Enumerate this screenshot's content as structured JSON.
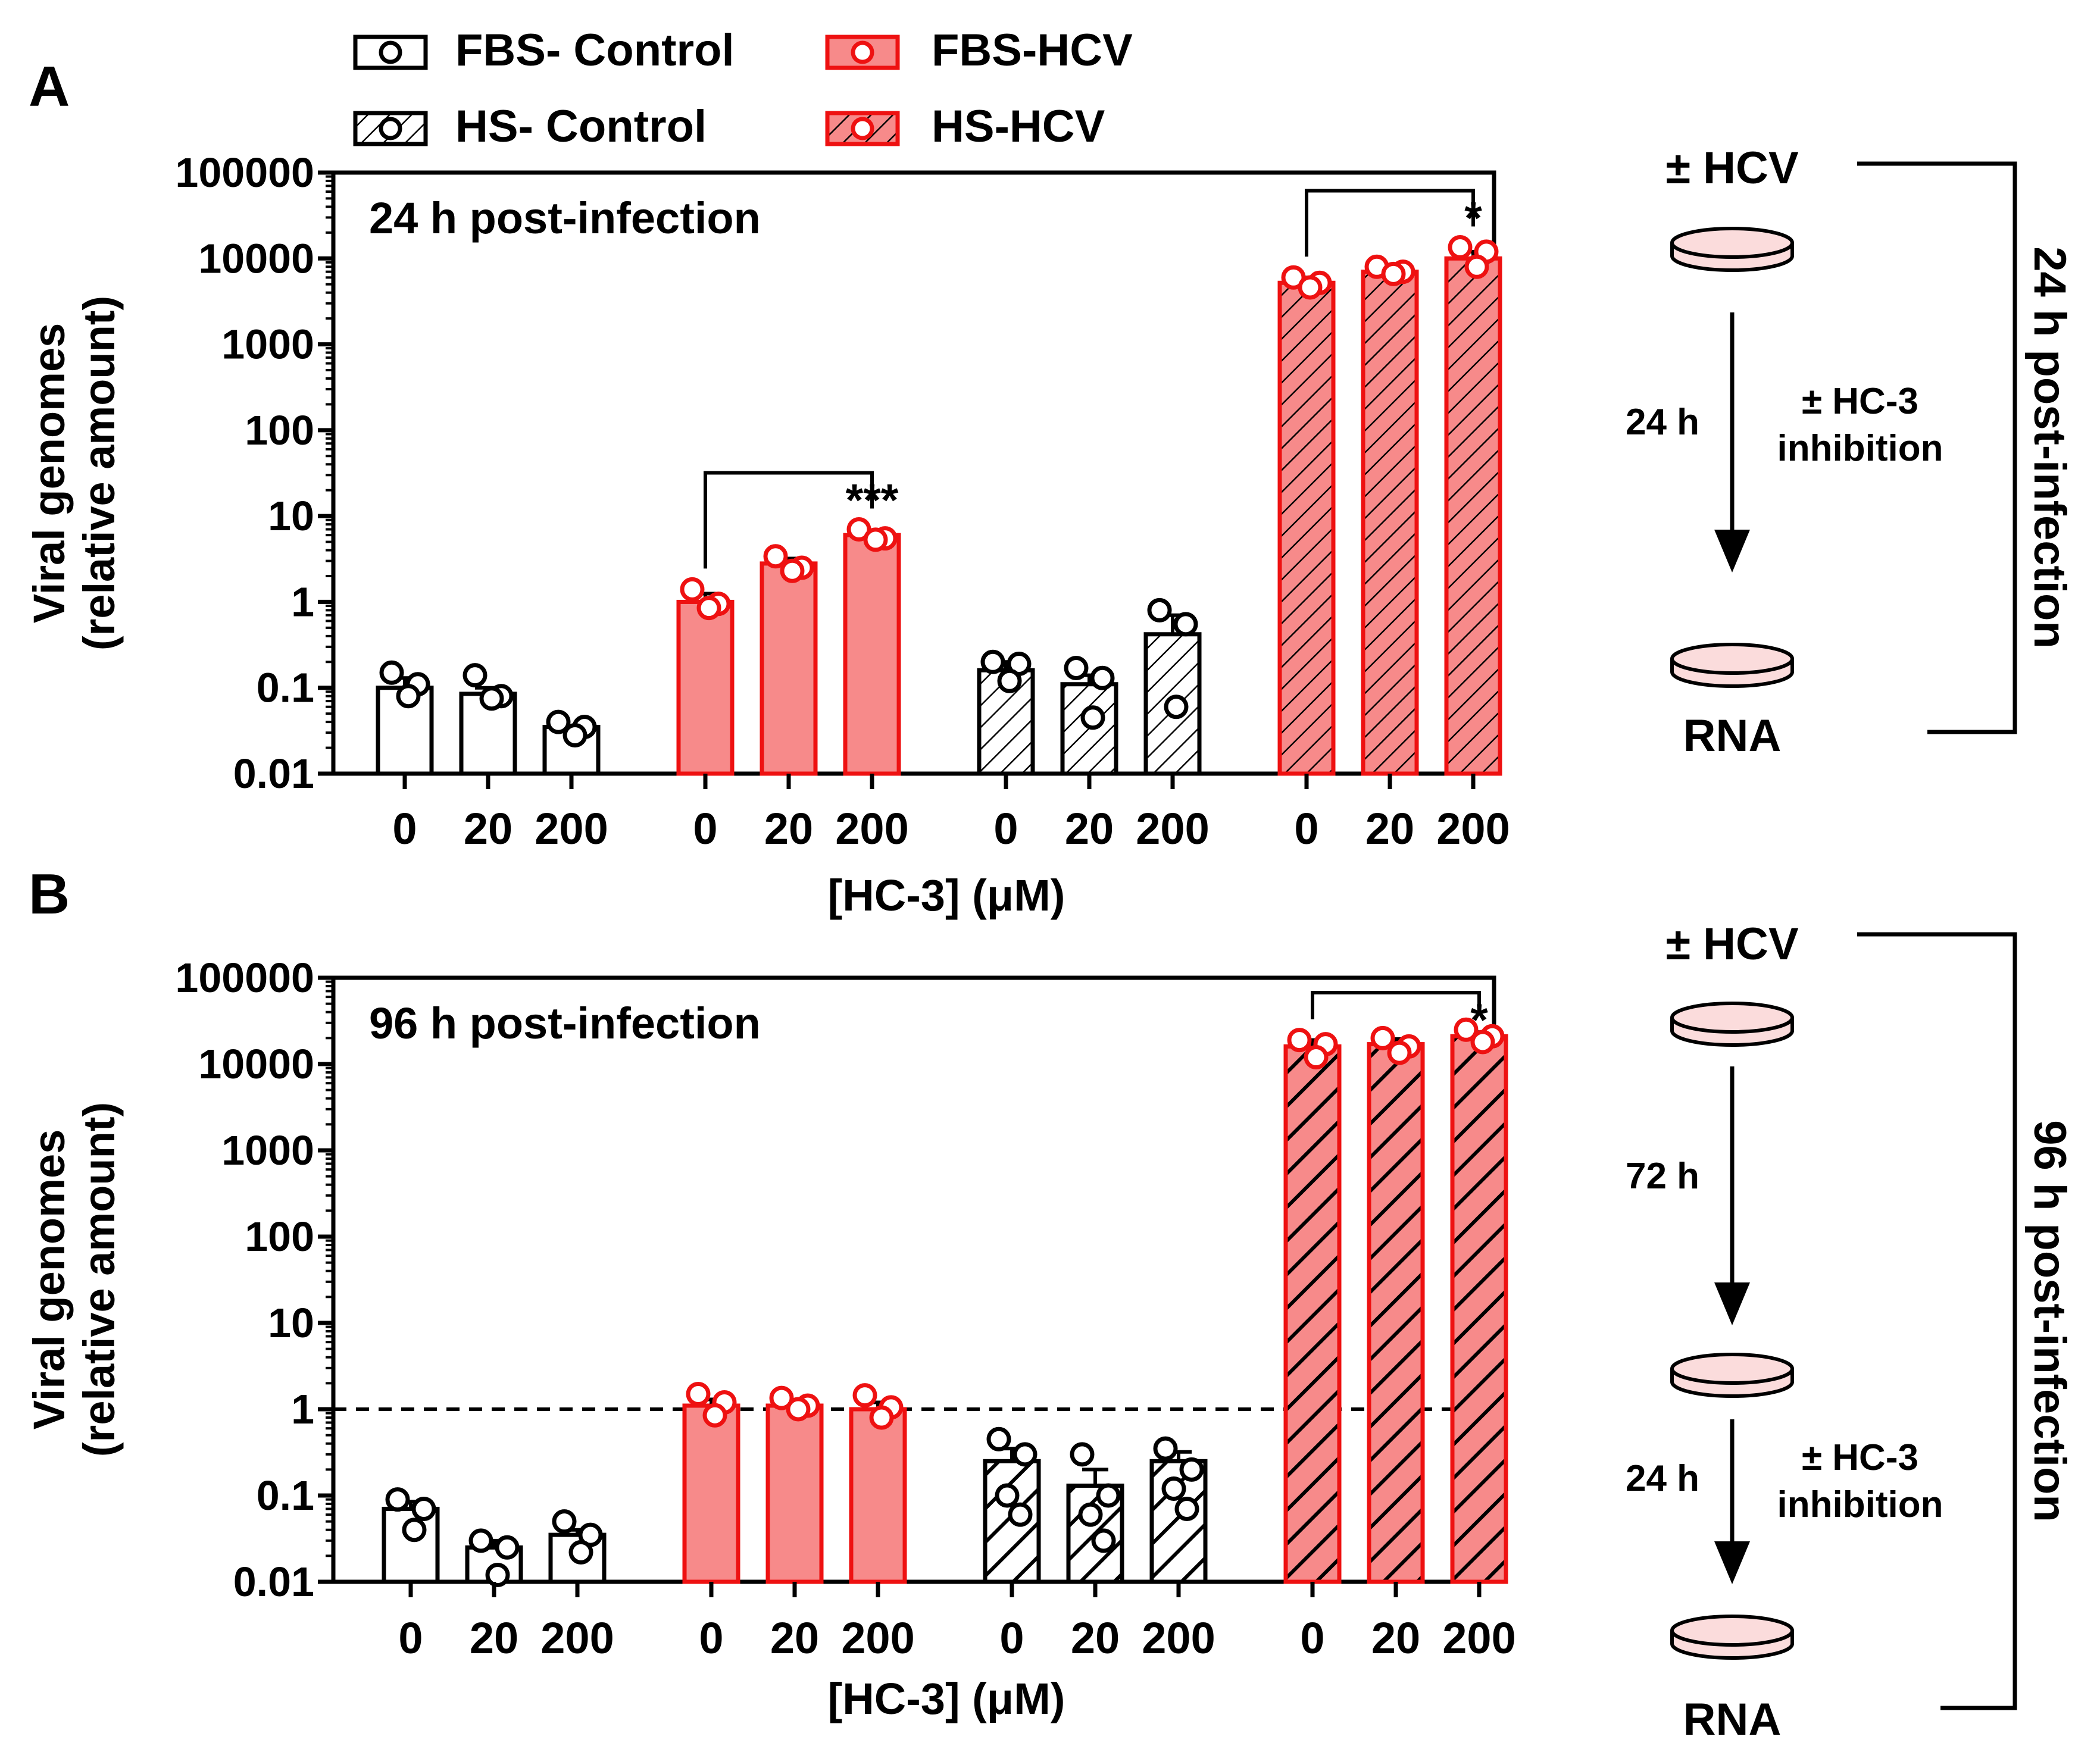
{
  "colors": {
    "hcv_fill": "#F78A8A",
    "hcv_stroke": "#EE1111",
    "control_fill": "#FFFFFF",
    "control_stroke": "#000000",
    "dish_fill": "#FBDCDC",
    "ink": "#000000"
  },
  "legend": [
    {
      "label": "FBS- Control",
      "hatched": false,
      "hcv": false
    },
    {
      "label": "FBS-HCV",
      "hatched": false,
      "hcv": true
    },
    {
      "label": "HS- Control",
      "hatched": true,
      "hcv": false
    },
    {
      "label": "HS-HCV",
      "hatched": true,
      "hcv": true
    }
  ],
  "chart_data": [
    {
      "panel_label": "A",
      "type": "bar",
      "annotation": "24 h post-infection",
      "ylabel_line1": "Viral genomes",
      "ylabel_line2": "(relative amount)",
      "xlabel": "[HC-3] (μM)",
      "yscale": "log",
      "ylim": [
        0.01,
        100000
      ],
      "yticks": [
        "0.01",
        "0.1",
        "1",
        "10",
        "100",
        "1000",
        "10000",
        "100000"
      ],
      "reference_line": null,
      "series": [
        {
          "name": "FBS- Control",
          "hatched": false,
          "hcv": false,
          "categories": [
            "0",
            "20",
            "200"
          ],
          "values": [
            0.1,
            0.085,
            0.035
          ],
          "sem_upper": [
            0.13,
            0.1,
            null
          ],
          "points": [
            [
              0.15,
              0.11,
              0.08
            ],
            [
              0.14,
              0.08,
              0.075
            ],
            [
              0.04,
              0.035,
              0.028
            ]
          ]
        },
        {
          "name": "FBS-HCV",
          "hatched": false,
          "hcv": true,
          "categories": [
            "0",
            "20",
            "200"
          ],
          "values": [
            1.0,
            2.8,
            6.0
          ],
          "sem_upper": [
            1.25,
            3.2,
            6.5
          ],
          "points": [
            [
              1.4,
              0.95,
              0.85
            ],
            [
              3.4,
              2.5,
              2.3
            ],
            [
              7.0,
              5.5,
              5.3
            ]
          ]
        },
        {
          "name": "HS- Control",
          "hatched": true,
          "hcv": false,
          "categories": [
            "0",
            "20",
            "200"
          ],
          "values": [
            0.16,
            0.11,
            0.42
          ],
          "sem_upper": [
            0.2,
            0.14,
            0.7
          ],
          "points": [
            [
              0.2,
              0.19,
              0.12
            ],
            [
              0.17,
              0.13,
              0.045
            ],
            [
              0.8,
              0.55,
              0.06
            ]
          ]
        },
        {
          "name": "HS-HCV",
          "hatched": true,
          "hcv": true,
          "categories": [
            "0",
            "20",
            "200"
          ],
          "values": [
            5200,
            7000,
            10000
          ],
          "sem_upper": [
            6000,
            7500,
            12000
          ],
          "points": [
            [
              6000,
              5200,
              4600
            ],
            [
              8000,
              7000,
              6600
            ],
            [
              13500,
              12000,
              8000
            ]
          ]
        }
      ],
      "significance": [
        {
          "from_group": 1,
          "from_index": 0,
          "to_index": 2,
          "label": "***"
        },
        {
          "from_group": 3,
          "from_index": 0,
          "to_index": 2,
          "label": "*"
        }
      ]
    },
    {
      "panel_label": "B",
      "type": "bar",
      "annotation": "96 h post-infection",
      "ylabel_line1": "Viral genomes",
      "ylabel_line2": "(relative amount)",
      "xlabel": "[HC-3] (μM)",
      "yscale": "log",
      "ylim": [
        0.01,
        100000
      ],
      "yticks": [
        "0.01",
        "0.1",
        "1",
        "10",
        "100",
        "1000",
        "10000",
        "100000"
      ],
      "reference_line": 1,
      "series": [
        {
          "name": "FBS- Control",
          "hatched": false,
          "hcv": false,
          "categories": [
            "0",
            "20",
            "200"
          ],
          "values": [
            0.07,
            0.025,
            0.035
          ],
          "sem_upper": [
            0.085,
            0.03,
            0.04
          ],
          "points": [
            [
              0.09,
              0.07,
              0.04
            ],
            [
              0.03,
              0.025,
              0.012
            ],
            [
              0.05,
              0.035,
              0.022
            ]
          ]
        },
        {
          "name": "FBS-HCV",
          "hatched": false,
          "hcv": true,
          "categories": [
            "0",
            "20",
            "200"
          ],
          "values": [
            1.1,
            1.1,
            1.0
          ],
          "sem_upper": [
            1.3,
            1.25,
            1.2
          ],
          "points": [
            [
              1.5,
              1.2,
              0.85
            ],
            [
              1.35,
              1.1,
              1.0
            ],
            [
              1.45,
              1.05,
              0.8
            ]
          ]
        },
        {
          "name": "HS- Control",
          "hatched": true,
          "hcv": false,
          "categories": [
            "0",
            "20",
            "200"
          ],
          "values": [
            0.25,
            0.13,
            0.25
          ],
          "sem_upper": [
            0.35,
            0.2,
            0.32
          ],
          "points": [
            [
              0.45,
              0.3,
              0.1,
              0.06
            ],
            [
              0.3,
              0.1,
              0.06,
              0.03
            ],
            [
              0.35,
              0.2,
              0.12,
              0.07
            ]
          ]
        },
        {
          "name": "HS-HCV",
          "hatched": true,
          "hcv": true,
          "categories": [
            "0",
            "20",
            "200"
          ],
          "values": [
            16000,
            17000,
            21000
          ],
          "sem_upper": [
            19000,
            19500,
            23500
          ],
          "points": [
            [
              19000,
              17000,
              12000
            ],
            [
              20000,
              16000,
              13500
            ],
            [
              25000,
              21000,
              18000
            ]
          ]
        }
      ],
      "significance": [
        {
          "from_group": 3,
          "from_index": 0,
          "to_index": 2,
          "label": "*"
        }
      ]
    }
  ],
  "schemes": [
    {
      "top_label": "± HCV",
      "steps": [
        {
          "duration": "24 h",
          "treatment_line1": "± HC-3",
          "treatment_line2": "inhibition"
        }
      ],
      "bottom_label": "RNA",
      "side_label": "24 h post-infection"
    },
    {
      "top_label": "± HCV",
      "steps": [
        {
          "duration": "72 h",
          "treatment_line1": "",
          "treatment_line2": ""
        },
        {
          "duration": "24 h",
          "treatment_line1": "± HC-3",
          "treatment_line2": "inhibition"
        }
      ],
      "bottom_label": "RNA",
      "side_label": "96 h post-infection"
    }
  ]
}
